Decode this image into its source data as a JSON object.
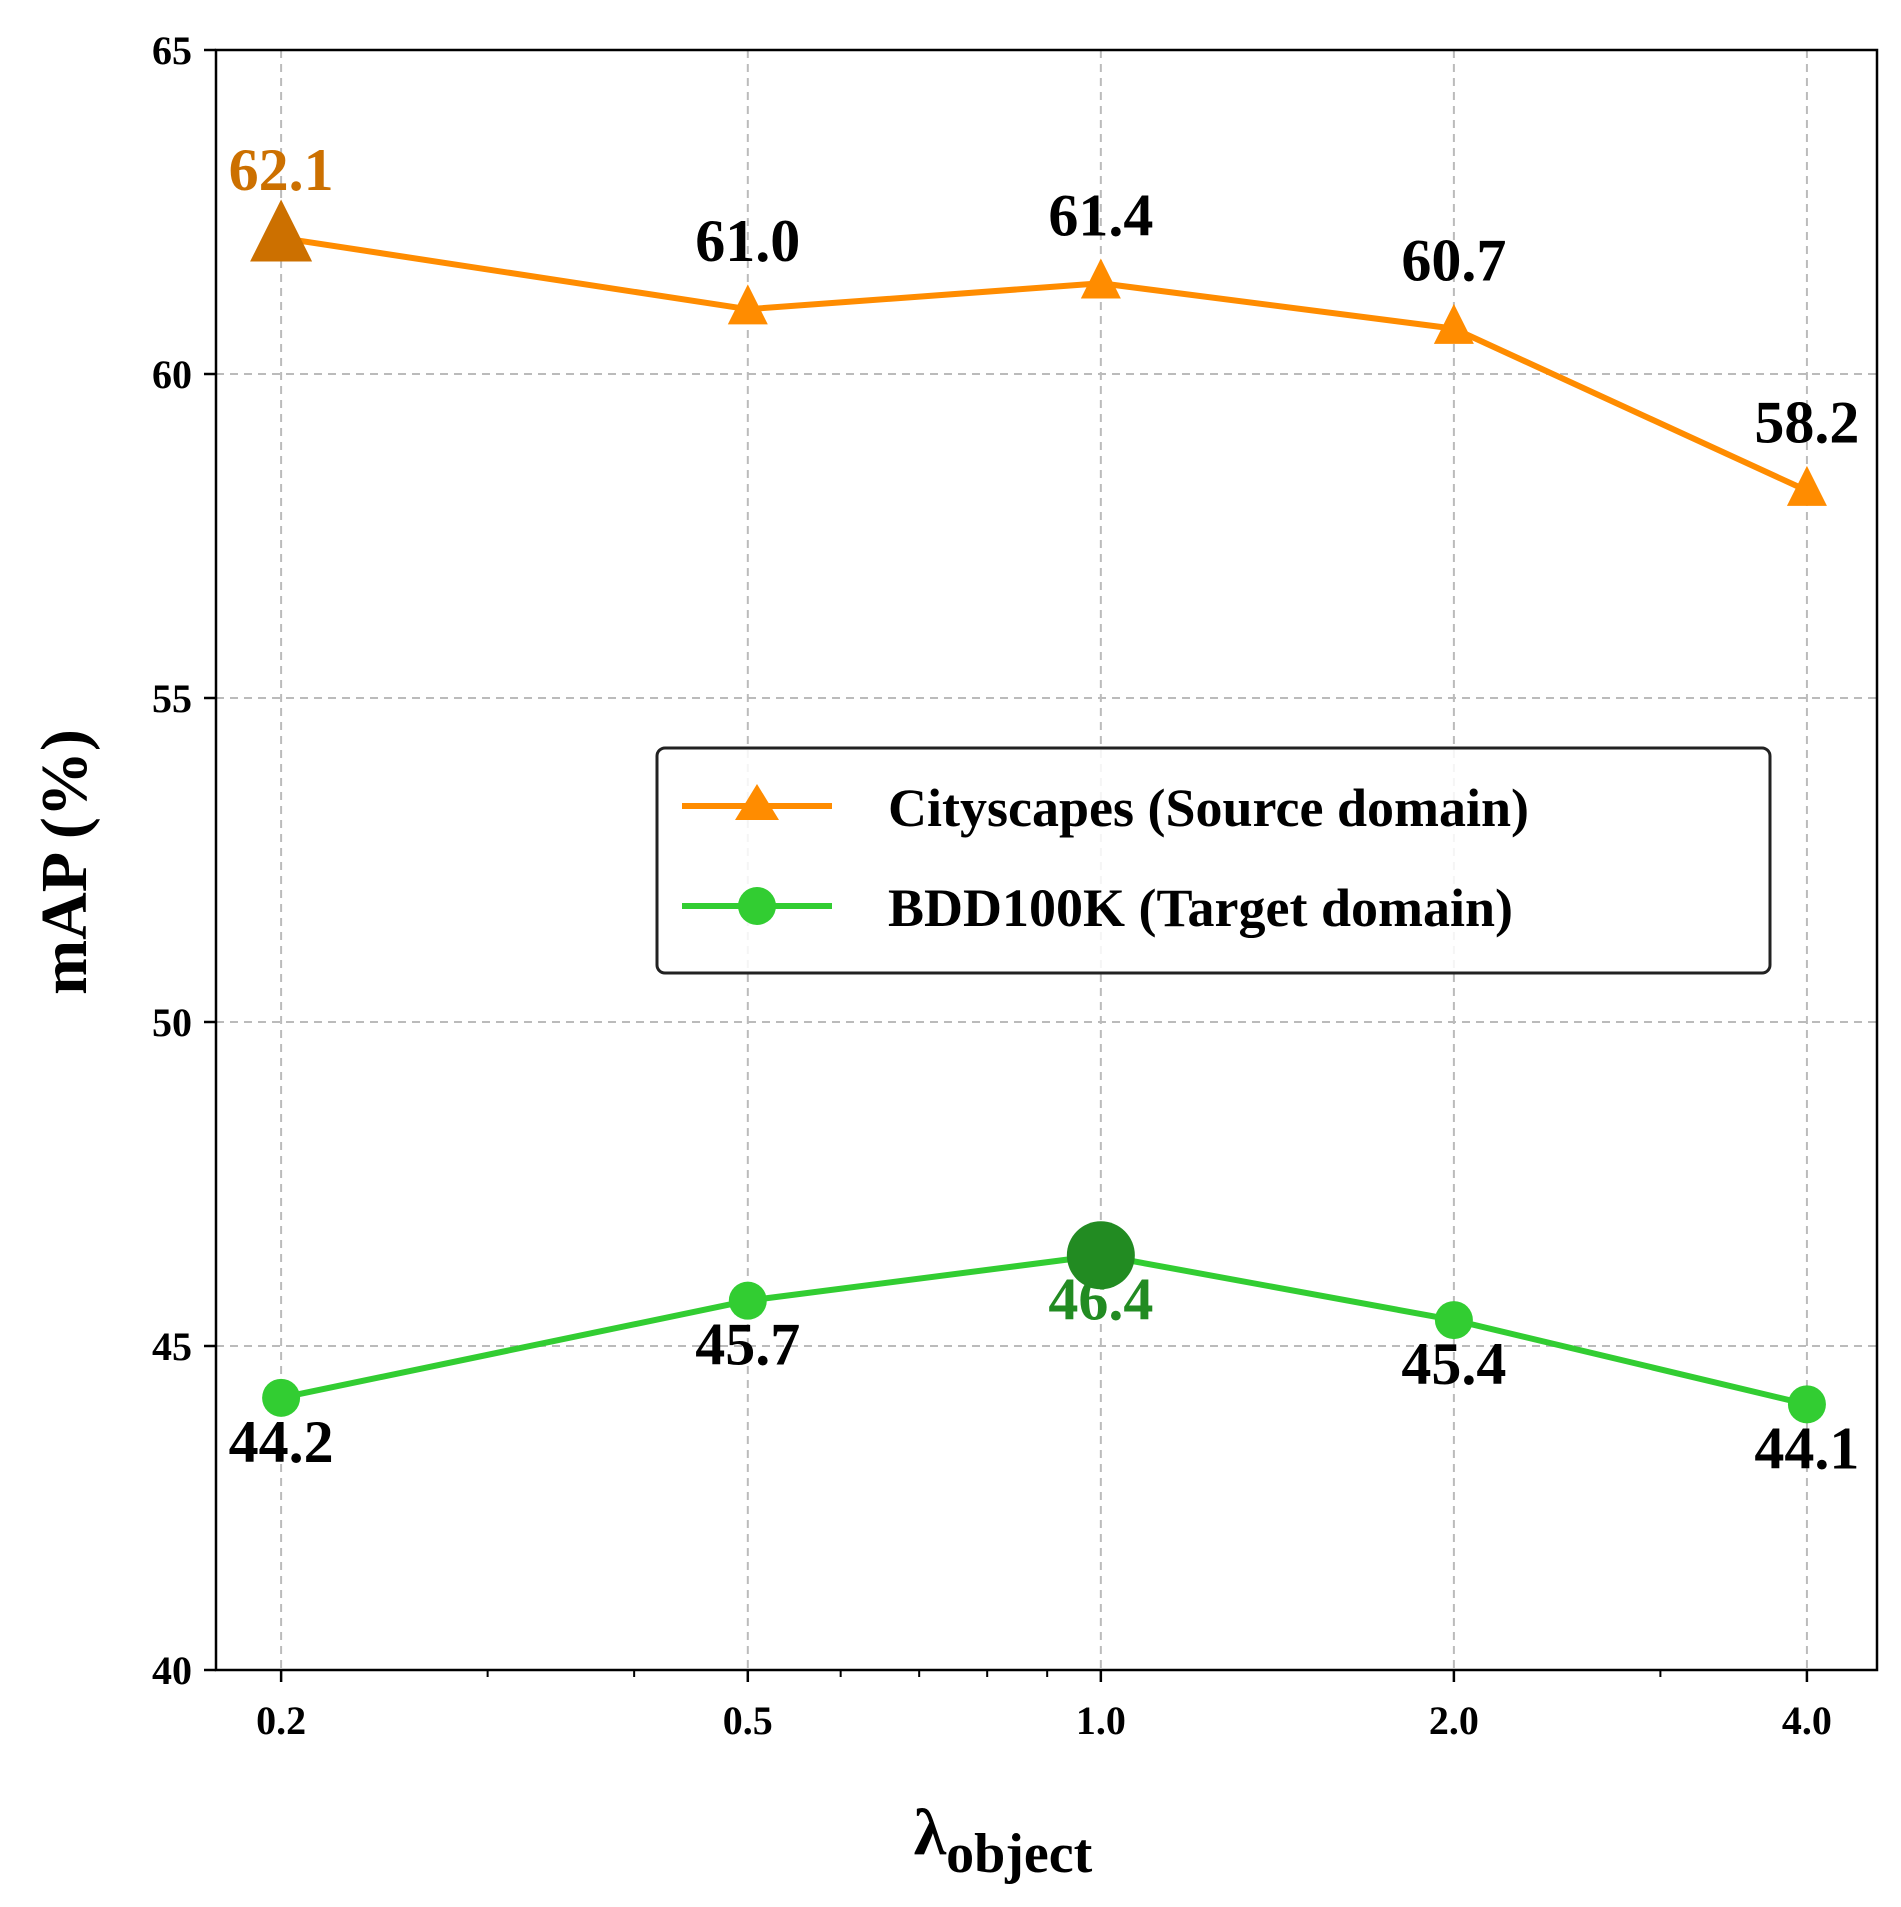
{
  "chart_data": {
    "type": "line",
    "title": "",
    "xlabel": "λ",
    "xlabel_subscript": "object",
    "ylabel": "mAP (%)",
    "x_scale": "log",
    "x": [
      0.2,
      0.5,
      1.0,
      2.0,
      4.0
    ],
    "x_tick_labels": [
      "0.2",
      "0.5",
      "1.0",
      "2.0",
      "4.0"
    ],
    "y_ticks": [
      40,
      45,
      50,
      55,
      60,
      65
    ],
    "y_tick_labels": [
      "40",
      "45",
      "50",
      "55",
      "60",
      "65"
    ],
    "ylim": [
      40,
      65
    ],
    "xlim": [
      0.176,
      4.59
    ],
    "grid": true,
    "legend_position": "center-right",
    "series": [
      {
        "name": "Cityscapes (Source domain)",
        "marker": "triangle",
        "color": "#ff8c00",
        "highlight_color": "#cc7000",
        "highlight_index": 0,
        "values": [
          62.1,
          61.0,
          61.4,
          60.7,
          58.2
        ],
        "labels": [
          "62.1",
          "61.0",
          "61.4",
          "60.7",
          "58.2"
        ]
      },
      {
        "name": "BDD100K (Target domain)",
        "marker": "circle",
        "color": "#32cd32",
        "highlight_color": "#228b22",
        "highlight_index": 2,
        "values": [
          44.2,
          45.7,
          46.4,
          45.4,
          44.1
        ],
        "labels": [
          "44.2",
          "45.7",
          "46.4",
          "45.4",
          "44.1"
        ]
      }
    ]
  }
}
